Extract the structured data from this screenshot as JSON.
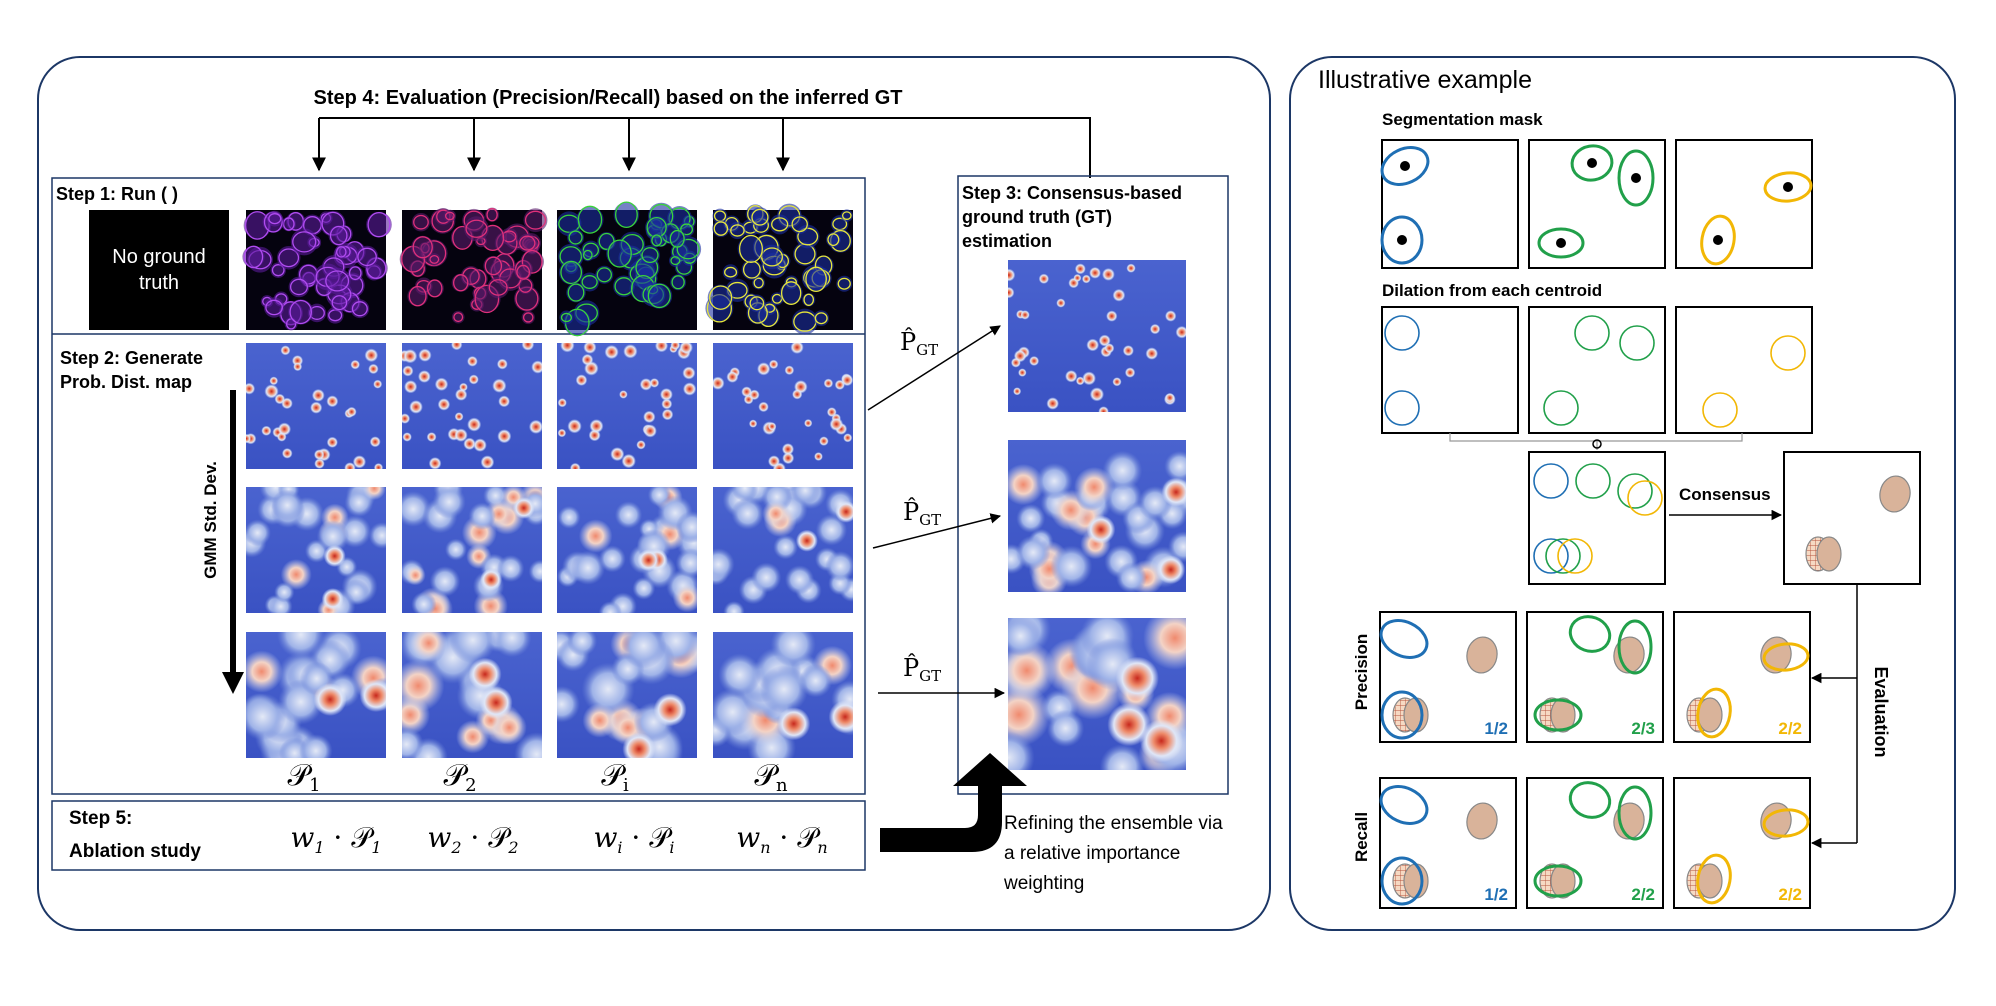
{
  "left": {
    "step4": "Step 4: Evaluation (Precision/Recall) based on the inferred GT",
    "step1": "Step 1: Run (    )",
    "no_gt_line1": "No ground",
    "no_gt_line2": "truth",
    "step2_line1": "Step 2: Generate",
    "step2_line2": "Prob. Dist. map",
    "gmm_label": "GMM Std. Dev.",
    "step3_line1": "Step 3: Consensus-based",
    "step3_line2": "ground truth (GT)",
    "step3_line3": "estimation",
    "p_gt": "P̂",
    "p_gt_sub": "GT",
    "col_labels": [
      {
        "base": "𝒫",
        "sub": "1"
      },
      {
        "base": "𝒫",
        "sub": "2"
      },
      {
        "base": "𝒫",
        "sub": "i"
      },
      {
        "base": "𝒫",
        "sub": "n"
      }
    ],
    "step5_line1": "Step 5:",
    "step5_line2": "Ablation study",
    "weights": [
      {
        "w": "w",
        "ws": "1",
        "p": "𝒫",
        "ps": "1"
      },
      {
        "w": "w",
        "ws": "2",
        "p": "𝒫",
        "ps": "2"
      },
      {
        "w": "w",
        "ws": "i",
        "p": "𝒫",
        "ps": "i"
      },
      {
        "w": "w",
        "ws": "n",
        "p": "𝒫",
        "ps": "n"
      }
    ],
    "dot": "·",
    "refine_line1": "Refining the ensemble via",
    "refine_line2": "a relative importance",
    "refine_line3": "weighting"
  },
  "right": {
    "title": "Illustrative example",
    "seg_mask": "Segmentation mask",
    "dilation": "Dilation from each centroid",
    "consensus": "Consensus",
    "evaluation": "Evaluation",
    "precision": "Precision",
    "recall": "Recall",
    "precision_scores": [
      "1/2",
      "2/3",
      "2/2"
    ],
    "recall_scores": [
      "1/2",
      "2/2",
      "2/2"
    ]
  },
  "colors": {
    "blue": "#1f6fb4",
    "green": "#21a04a",
    "yellow": "#f2b705",
    "consensus_fill": "#d9b39a",
    "panel_border": "#1c3766",
    "heat_bg": "#3d55c6",
    "heat_hot": "#d7402a"
  }
}
